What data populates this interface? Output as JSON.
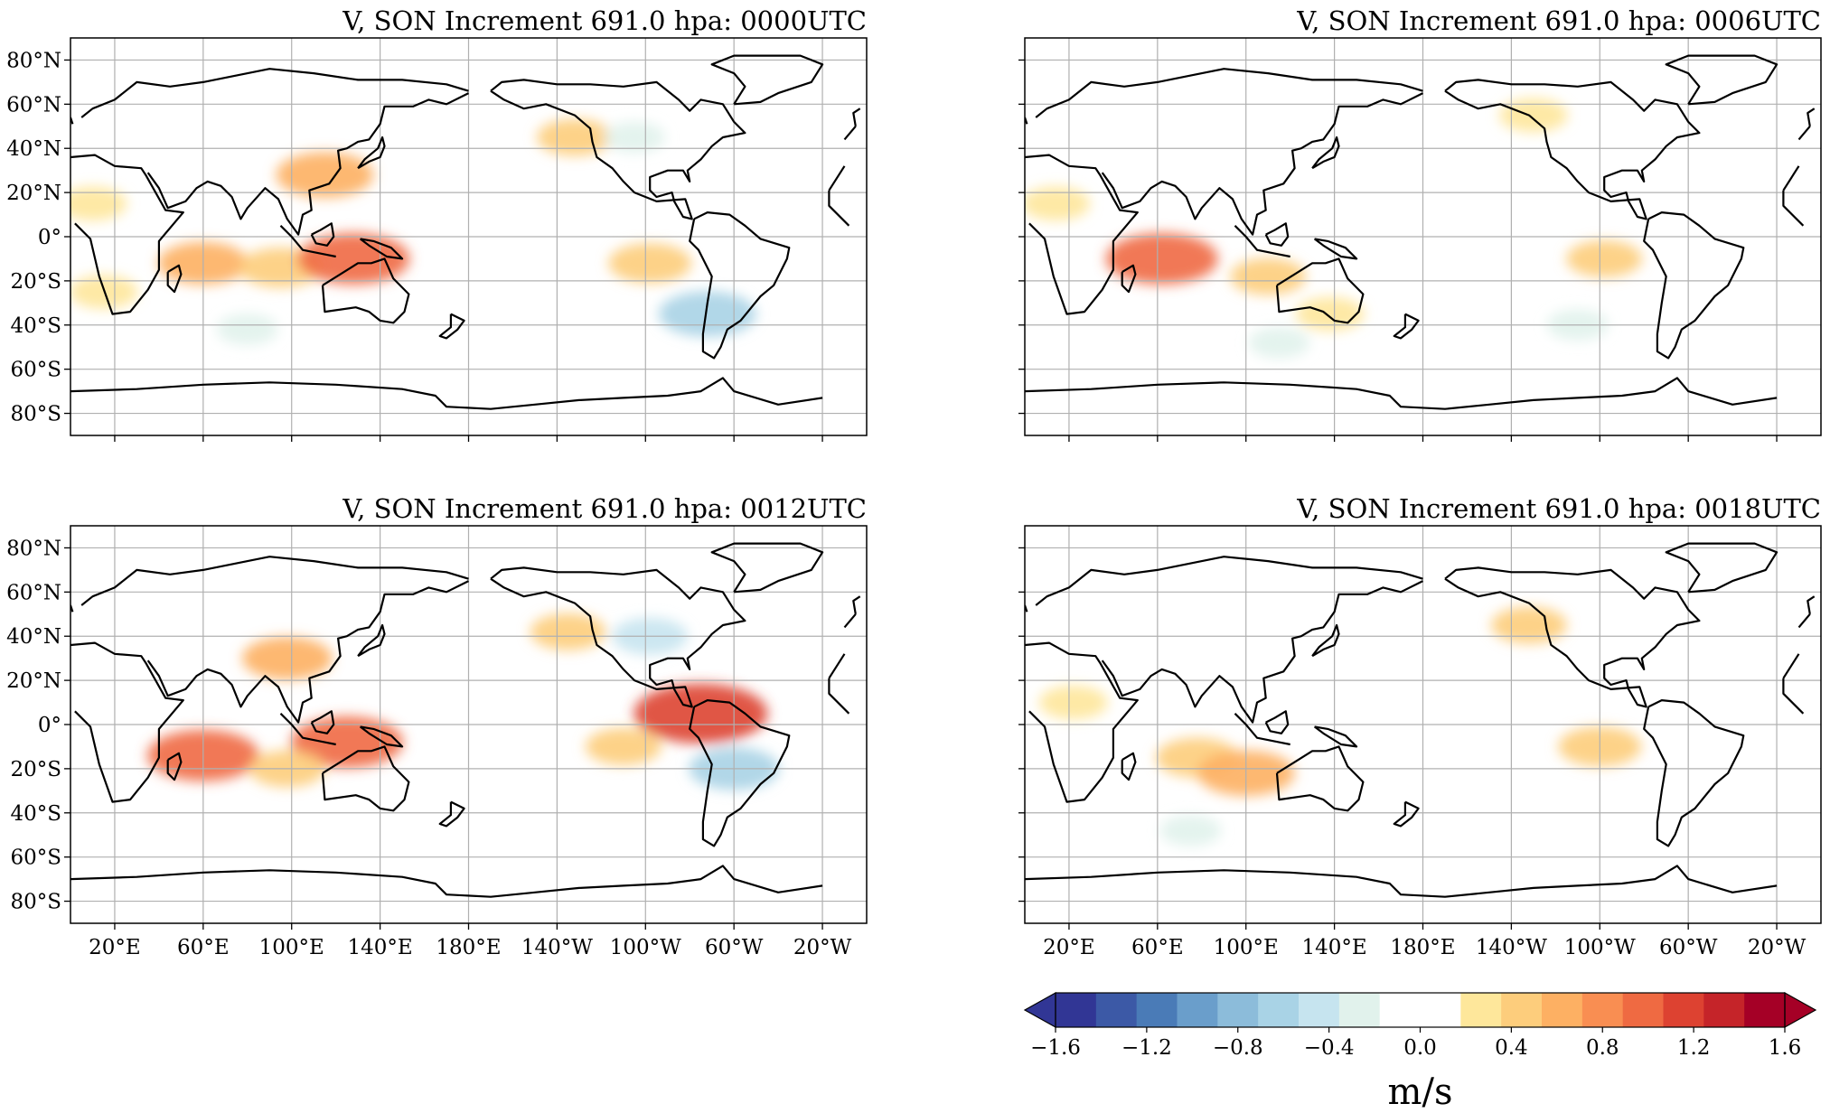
{
  "figure": {
    "panels": [
      {
        "title": "V, SON Increment 691.0 hpa: 0000UTC",
        "time": "0000UTC"
      },
      {
        "title": "V, SON Increment 691.0 hpa: 0006UTC",
        "time": "0006UTC"
      },
      {
        "title": "V, SON Increment 691.0 hpa: 0012UTC",
        "time": "0012UTC"
      },
      {
        "title": "V, SON Increment 691.0 hpa: 0018UTC",
        "time": "0018UTC"
      }
    ],
    "lat_ticks": [
      {
        "value": 80,
        "label": "80°N"
      },
      {
        "value": 60,
        "label": "60°N"
      },
      {
        "value": 40,
        "label": "40°N"
      },
      {
        "value": 20,
        "label": "20°N"
      },
      {
        "value": 0,
        "label": "0°"
      },
      {
        "value": -20,
        "label": "20°S"
      },
      {
        "value": -40,
        "label": "40°S"
      },
      {
        "value": -60,
        "label": "60°S"
      },
      {
        "value": -80,
        "label": "80°S"
      }
    ],
    "lon_ticks": [
      {
        "value": 20,
        "label": "20°E"
      },
      {
        "value": 60,
        "label": "60°E"
      },
      {
        "value": 100,
        "label": "100°E"
      },
      {
        "value": 140,
        "label": "140°E"
      },
      {
        "value": 180,
        "label": "180°E"
      },
      {
        "value": 220,
        "label": "140°W"
      },
      {
        "value": 260,
        "label": "100°W"
      },
      {
        "value": 300,
        "label": "60°W"
      },
      {
        "value": 340,
        "label": "20°W"
      }
    ],
    "colorbar": {
      "unit": "m/s",
      "min": -1.6,
      "max": 1.6,
      "step": 0.2,
      "extend": "both",
      "tick_labels": [
        {
          "value": -1.6,
          "label": "−1.6"
        },
        {
          "value": -1.2,
          "label": "−1.2"
        },
        {
          "value": -0.8,
          "label": "−0.8"
        },
        {
          "value": -0.4,
          "label": "−0.4"
        },
        {
          "value": 0.0,
          "label": "0.0"
        },
        {
          "value": 0.4,
          "label": "0.4"
        },
        {
          "value": 0.8,
          "label": "0.8"
        },
        {
          "value": 1.2,
          "label": "1.2"
        },
        {
          "value": 1.6,
          "label": "1.6"
        }
      ],
      "colors": [
        "#313695",
        "#3c59a6",
        "#4a7bb7",
        "#6a9ecb",
        "#8cbcda",
        "#a9d3e6",
        "#c6e4ef",
        "#e1f2ec",
        "#ffffff",
        "#ffffff",
        "#fee79b",
        "#fdcd7c",
        "#fdb063",
        "#f98e52",
        "#ef6a42",
        "#dd4231",
        "#c52429",
        "#a50026"
      ],
      "under_color": "#313695",
      "over_color": "#a50026"
    }
  },
  "chart_data": {
    "type": "heatmap",
    "variable": "V",
    "season": "SON",
    "field": "Increment",
    "level_hpa": 691.0,
    "unit": "m/s",
    "times": [
      "0000UTC",
      "0006UTC",
      "0012UTC",
      "0018UTC"
    ],
    "lon_range": [
      0,
      360
    ],
    "lat_range": [
      -90,
      90
    ],
    "color_range": [
      -1.6,
      1.6
    ],
    "features": [
      [
        {
          "lon": 60,
          "lat": -12,
          "value": 0.6
        },
        {
          "lon": 95,
          "lat": -14,
          "value": 0.5
        },
        {
          "lon": 128,
          "lat": -10,
          "value": 0.9
        },
        {
          "lon": 115,
          "lat": 28,
          "value": 0.7
        },
        {
          "lon": 10,
          "lat": 15,
          "value": 0.3
        },
        {
          "lon": 15,
          "lat": -25,
          "value": 0.3
        },
        {
          "lon": 262,
          "lat": -12,
          "value": 0.5
        },
        {
          "lon": 228,
          "lat": 45,
          "value": 0.4
        },
        {
          "lon": 80,
          "lat": -42,
          "value": -0.2
        },
        {
          "lon": 255,
          "lat": 45,
          "value": -0.2
        },
        {
          "lon": 288,
          "lat": -35,
          "value": -0.7
        }
      ],
      [
        {
          "lon": 62,
          "lat": -10,
          "value": 0.9
        },
        {
          "lon": 110,
          "lat": -18,
          "value": 0.4
        },
        {
          "lon": 14,
          "lat": 15,
          "value": 0.3
        },
        {
          "lon": 138,
          "lat": -35,
          "value": 0.3
        },
        {
          "lon": 262,
          "lat": -10,
          "value": 0.4
        },
        {
          "lon": 230,
          "lat": 55,
          "value": 0.3
        },
        {
          "lon": 115,
          "lat": -48,
          "value": -0.2
        },
        {
          "lon": 250,
          "lat": -40,
          "value": -0.2
        }
      ],
      [
        {
          "lon": 60,
          "lat": -14,
          "value": 0.9
        },
        {
          "lon": 125,
          "lat": -8,
          "value": 0.9
        },
        {
          "lon": 98,
          "lat": -20,
          "value": 0.4
        },
        {
          "lon": 285,
          "lat": 5,
          "value": 1.2
        },
        {
          "lon": 250,
          "lat": -10,
          "value": 0.4
        },
        {
          "lon": 225,
          "lat": 42,
          "value": 0.4
        },
        {
          "lon": 300,
          "lat": -20,
          "value": -0.6
        },
        {
          "lon": 262,
          "lat": 40,
          "value": -0.4
        },
        {
          "lon": 98,
          "lat": 30,
          "value": 0.6
        }
      ],
      [
        {
          "lon": 78,
          "lat": -15,
          "value": 0.5
        },
        {
          "lon": 100,
          "lat": -22,
          "value": 0.7
        },
        {
          "lon": 260,
          "lat": -10,
          "value": 0.5
        },
        {
          "lon": 228,
          "lat": 45,
          "value": 0.4
        },
        {
          "lon": 22,
          "lat": 10,
          "value": 0.3
        },
        {
          "lon": 75,
          "lat": -48,
          "value": -0.2
        }
      ]
    ]
  }
}
